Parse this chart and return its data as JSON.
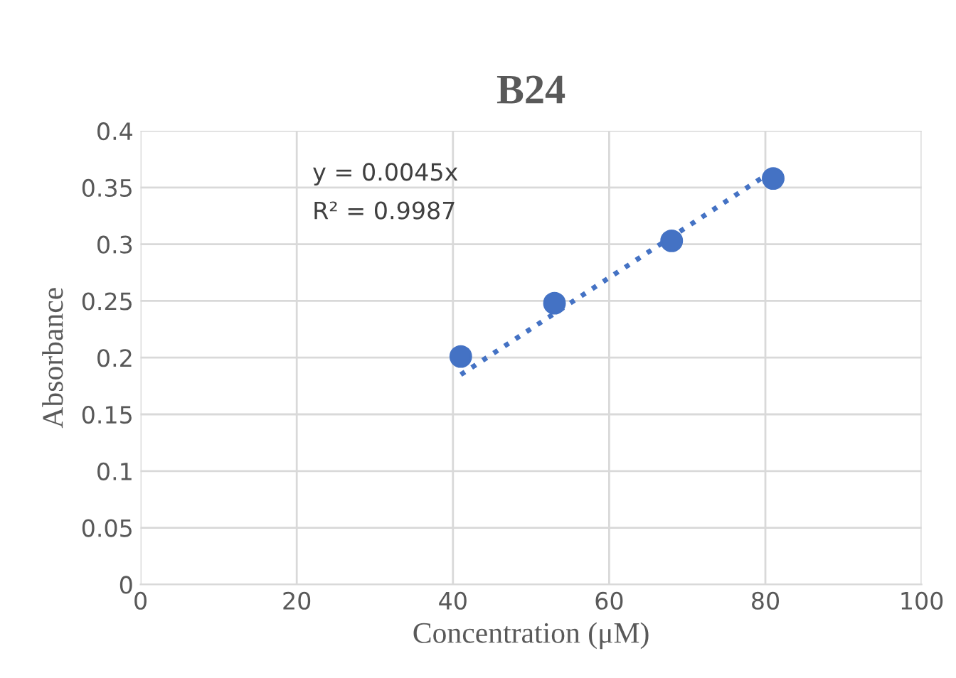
{
  "chart_data": {
    "type": "scatter",
    "title": "B24",
    "xlabel": "Concentration (μM)",
    "ylabel": "Absorbance",
    "xlim": [
      0,
      100
    ],
    "xticks": [
      0,
      20,
      40,
      60,
      80,
      100
    ],
    "ylim": [
      0,
      0.4
    ],
    "yticks": [
      0,
      0.05,
      0.1,
      0.15,
      0.2,
      0.25,
      0.3,
      0.35,
      0.4
    ],
    "grid": true,
    "marker": "circle",
    "series": [
      {
        "color": "#4472c4",
        "x": [
          41,
          53,
          68,
          81
        ],
        "values": [
          0.201,
          0.248,
          0.303,
          0.358
        ]
      },
      {
        "type": "line",
        "color": "#4472c4",
        "line_style": "dotted",
        "marker": "none",
        "x": [
          41,
          81
        ],
        "values": [
          0.185,
          0.365
        ]
      }
    ],
    "annotations": [
      "y = 0.0045x",
      "R² = 0.9987"
    ]
  }
}
